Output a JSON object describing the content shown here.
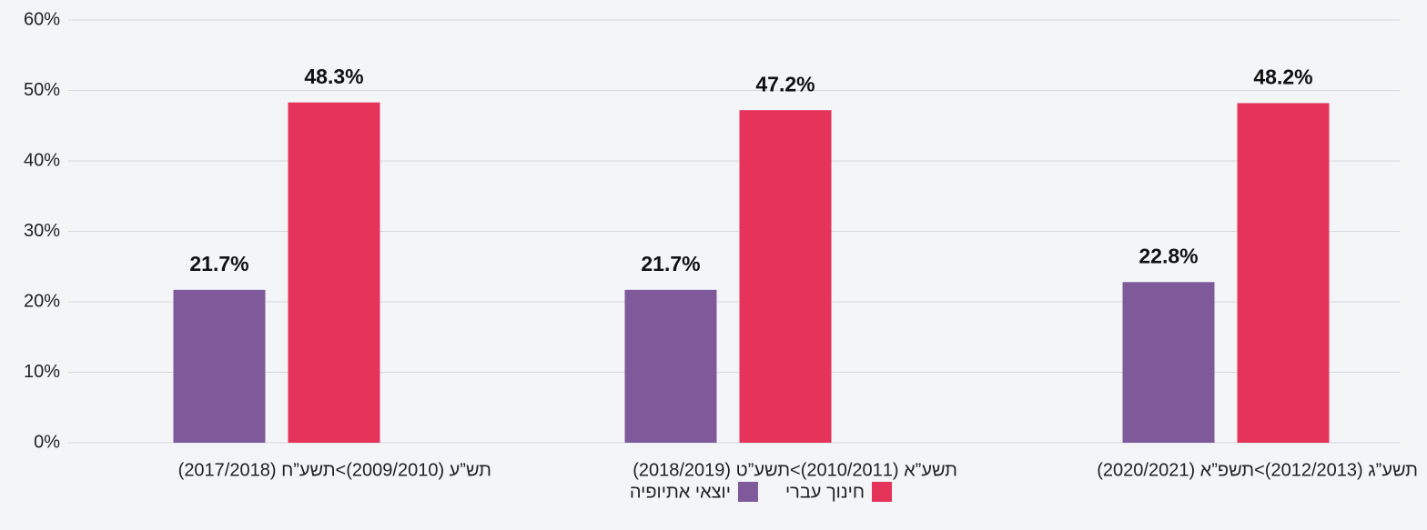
{
  "chart_data": {
    "type": "bar",
    "categories": [
      "תש”ע (2009/2010)>תשע”ח (2017/2018)",
      "תשע”א (2010/2011)>תשע”ט (2018/2019)",
      "תשע”ג (2012/2013)>תשפ”א (2020/2021)"
    ],
    "series": [
      {
        "name": "יוצאי אתיופיה",
        "color": "#7e5a9b",
        "values": [
          21.7,
          21.7,
          22.8
        ],
        "value_labels": [
          "21.7%",
          "21.7%",
          "22.8%"
        ]
      },
      {
        "name": "חינוך עברי",
        "color": "#e5335a",
        "values": [
          48.3,
          47.2,
          48.2
        ],
        "value_labels": [
          "48.3%",
          "47.2%",
          "48.2%"
        ]
      }
    ],
    "ylim": [
      0,
      60
    ],
    "yticks": [
      {
        "value": 0,
        "label": "0%"
      },
      {
        "value": 10,
        "label": "10%"
      },
      {
        "value": 20,
        "label": "20%"
      },
      {
        "value": 30,
        "label": "30%"
      },
      {
        "value": 40,
        "label": "40%"
      },
      {
        "value": 50,
        "label": "50%"
      },
      {
        "value": 60,
        "label": "60%"
      }
    ],
    "grid": true
  }
}
